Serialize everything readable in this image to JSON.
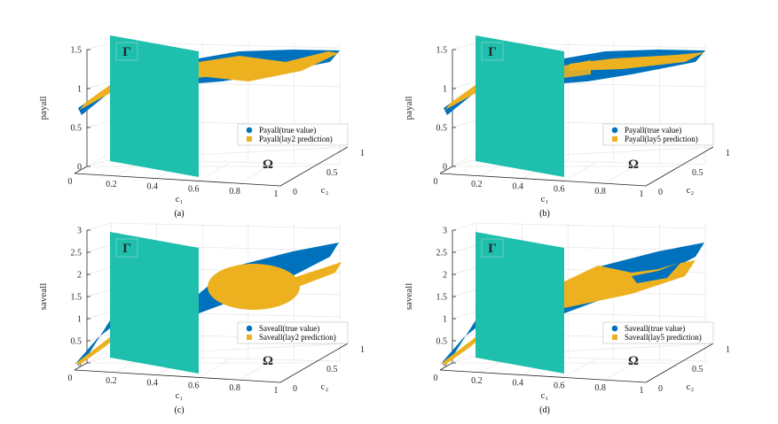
{
  "figure": {
    "colors": {
      "true_value": "#0072BD",
      "prediction": "#EDB120",
      "gamma_plane": "#1FBFAE"
    },
    "symbols": {
      "gamma": "Γ",
      "omega": "Ω"
    }
  },
  "chart_data": [
    {
      "type": "scatter3d",
      "panel": "a",
      "caption": "(a)",
      "ylabel": "payall",
      "xlabel": "c₁",
      "x2label": "c₂",
      "xticks": [
        "0",
        "0.2",
        "0.4",
        "0.6",
        "0.8",
        "1"
      ],
      "x2ticks": [
        "0",
        "0.5",
        "1"
      ],
      "zticks": [
        "0",
        "0.5",
        "1",
        "1.5"
      ],
      "zlim": [
        0,
        1.5
      ],
      "legend": [
        "Payall(true value)",
        "Payall(lay2 prediction)"
      ],
      "plane_c1": 0.5,
      "approx_range": {
        "true_value": [
          0.65,
          1.45
        ],
        "prediction": [
          0.7,
          1.45
        ]
      }
    },
    {
      "type": "scatter3d",
      "panel": "b",
      "caption": "(b)",
      "ylabel": "payall",
      "xlabel": "c₁",
      "x2label": "c₂",
      "xticks": [
        "0",
        "0.2",
        "0.4",
        "0.6",
        "0.8",
        "1"
      ],
      "x2ticks": [
        "0",
        "0.5",
        "1"
      ],
      "zticks": [
        "0",
        "0.5",
        "1",
        "1.5"
      ],
      "zlim": [
        0,
        1.5
      ],
      "legend": [
        "Payall(true value)",
        "Payall(lay5 prediction)"
      ],
      "plane_c1": 0.5,
      "approx_range": {
        "true_value": [
          0.65,
          1.45
        ],
        "prediction": [
          0.9,
          1.4
        ]
      }
    },
    {
      "type": "scatter3d",
      "panel": "c",
      "caption": "(c)",
      "ylabel": "saveall",
      "xlabel": "c₁",
      "x2label": "c₂",
      "xticks": [
        "0",
        "0.2",
        "0.4",
        "0.6",
        "0.8",
        "1"
      ],
      "x2ticks": [
        "0",
        "0.5",
        "1"
      ],
      "zticks": [
        "0",
        "0.5",
        "1",
        "1.5",
        "2",
        "2.5",
        "3"
      ],
      "zlim": [
        0,
        3
      ],
      "legend": [
        "Saveall(true value)",
        "Saveall(lay2 prediction)"
      ],
      "plane_c1": 0.5,
      "approx_range": {
        "true_value": [
          0,
          3.05
        ],
        "prediction": [
          0,
          2.6
        ]
      }
    },
    {
      "type": "scatter3d",
      "panel": "d",
      "caption": "(d)",
      "ylabel": "saveall",
      "xlabel": "c₁",
      "x2label": "c₂",
      "xticks": [
        "0",
        "0.2",
        "0.4",
        "0.6",
        "0.8",
        "1"
      ],
      "x2ticks": [
        "0",
        "0.5",
        "1"
      ],
      "zticks": [
        "0",
        "0.5",
        "1",
        "1.5",
        "2",
        "2.5",
        "3"
      ],
      "zlim": [
        0,
        3
      ],
      "legend": [
        "Saveall(true value)",
        "Saveall(lay5 prediction)"
      ],
      "plane_c1": 0.5,
      "approx_range": {
        "true_value": [
          0,
          3.05
        ],
        "prediction": [
          0,
          3.0
        ]
      }
    }
  ]
}
